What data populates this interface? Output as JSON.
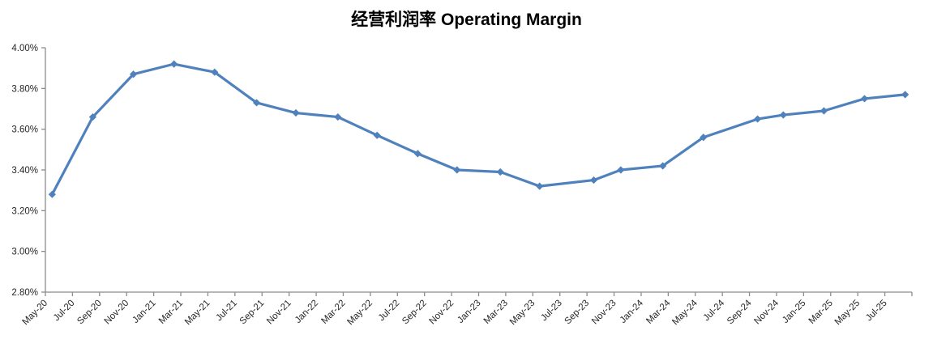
{
  "chart_data": {
    "type": "line",
    "title": "经营利润率 Operating Margin",
    "legend": "none",
    "grid": "off",
    "ylabel": "",
    "xlabel": "",
    "y_axis": {
      "min_pct": 2.8,
      "max_pct": 4.0,
      "tick_step_pct": 0.2,
      "tick_labels": [
        "4.00%",
        "3.80%",
        "3.60%",
        "3.40%",
        "3.20%",
        "3.00%",
        "2.80%"
      ]
    },
    "x_axis": {
      "tick_labels": [
        "May-20",
        "Jul-20",
        "Sep-20",
        "Nov-20",
        "Jan-21",
        "Mar-21",
        "May-21",
        "Jul-21",
        "Sep-21",
        "Nov-21",
        "Jan-22",
        "Mar-22",
        "May-22",
        "Jul-22",
        "Sep-22",
        "Nov-22",
        "Jan-23",
        "Mar-23",
        "May-23",
        "Jul-23",
        "Sep-23",
        "Nov-23",
        "Jan-24",
        "Mar-24",
        "May-24",
        "Jul-24",
        "Sep-24",
        "Nov-24",
        "Jan-25",
        "Mar-25",
        "May-25",
        "Jul-25"
      ],
      "months_between_labeled_ticks": 2,
      "axis_range_months": [
        0,
        64
      ]
    },
    "series": [
      {
        "name": "Operating Margin",
        "marker": "diamond",
        "points": [
          {
            "x_month": 0.5,
            "value_pct": 3.28
          },
          {
            "x_month": 3.5,
            "value_pct": 3.66
          },
          {
            "x_month": 6.5,
            "value_pct": 3.87
          },
          {
            "x_month": 9.5,
            "value_pct": 3.92
          },
          {
            "x_month": 12.5,
            "value_pct": 3.88
          },
          {
            "x_month": 15.6,
            "value_pct": 3.73
          },
          {
            "x_month": 18.5,
            "value_pct": 3.68
          },
          {
            "x_month": 21.6,
            "value_pct": 3.66
          },
          {
            "x_month": 24.5,
            "value_pct": 3.57
          },
          {
            "x_month": 27.5,
            "value_pct": 3.48
          },
          {
            "x_month": 30.4,
            "value_pct": 3.4
          },
          {
            "x_month": 33.6,
            "value_pct": 3.39
          },
          {
            "x_month": 36.5,
            "value_pct": 3.32
          },
          {
            "x_month": 40.5,
            "value_pct": 3.35
          },
          {
            "x_month": 42.5,
            "value_pct": 3.4
          },
          {
            "x_month": 45.6,
            "value_pct": 3.42
          },
          {
            "x_month": 48.6,
            "value_pct": 3.56
          },
          {
            "x_month": 52.6,
            "value_pct": 3.65
          },
          {
            "x_month": 54.5,
            "value_pct": 3.67
          },
          {
            "x_month": 57.5,
            "value_pct": 3.69
          },
          {
            "x_month": 60.5,
            "value_pct": 3.75
          },
          {
            "x_month": 63.5,
            "value_pct": 3.77
          }
        ]
      }
    ],
    "colors": {
      "series_line": "#4F81BD",
      "axis_line": "#8C8C8C",
      "tick_label": "#262626",
      "background": "#FFFFFF"
    }
  }
}
